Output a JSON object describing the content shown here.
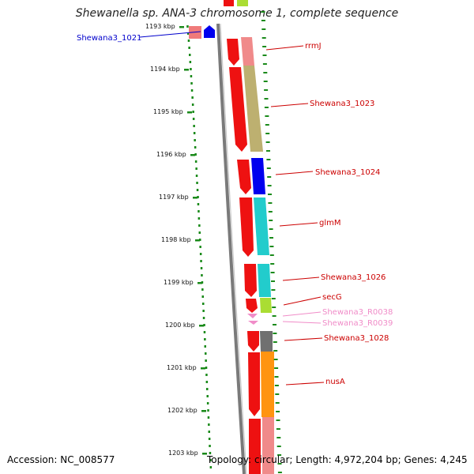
{
  "title": "Shewanella sp. ANA-3 chromosome 1, complete sequence",
  "footer": {
    "accession": "Accession: NC_008577",
    "summary": "Topology: circular; Length: 4,972,204 bp; Genes: 4,245"
  },
  "ruler": {
    "unit": "kbp",
    "ticks": [
      "1193 kbp",
      "1194 kbp",
      "1195 kbp",
      "1196 kbp",
      "1197 kbp",
      "1198 kbp",
      "1199 kbp",
      "1200 kbp",
      "1201 kbp",
      "1202 kbp",
      "1203 kbp"
    ]
  },
  "genes": [
    {
      "label": "Shewana3_1021",
      "strand": "reverse",
      "color": "#0000cc",
      "kind": "cds"
    },
    {
      "label": "rrmJ",
      "strand": "forward",
      "color": "#cc0000",
      "kind": "cds"
    },
    {
      "label": "Shewana3_1023",
      "strand": "forward",
      "color": "#cc0000",
      "kind": "cds"
    },
    {
      "label": "Shewana3_1024",
      "strand": "forward",
      "color": "#cc0000",
      "kind": "cds"
    },
    {
      "label": "glmM",
      "strand": "forward",
      "color": "#cc0000",
      "kind": "cds"
    },
    {
      "label": "Shewana3_1026",
      "strand": "forward",
      "color": "#cc0000",
      "kind": "cds"
    },
    {
      "label": "secG",
      "strand": "forward",
      "color": "#cc0000",
      "kind": "cds"
    },
    {
      "label": "Shewana3_R0038",
      "strand": "forward",
      "color": "#f08cc8",
      "kind": "rna"
    },
    {
      "label": "Shewana3_R0039",
      "strand": "forward",
      "color": "#f08cc8",
      "kind": "rna"
    },
    {
      "label": "Shewana3_1028",
      "strand": "forward",
      "color": "#cc0000",
      "kind": "cds"
    },
    {
      "label": "nusA",
      "strand": "forward",
      "color": "#cc0000",
      "kind": "cds"
    }
  ],
  "colors": {
    "cds_forward": "#ee0000",
    "cds_reverse": "#0000ee",
    "rna": "#f08cc8",
    "backbone": "#808080",
    "gc_dots": "#1a8a1a",
    "label_forward": "#cc0000",
    "label_reverse": "#0000cc",
    "label_rna": "#f08cc8"
  }
}
